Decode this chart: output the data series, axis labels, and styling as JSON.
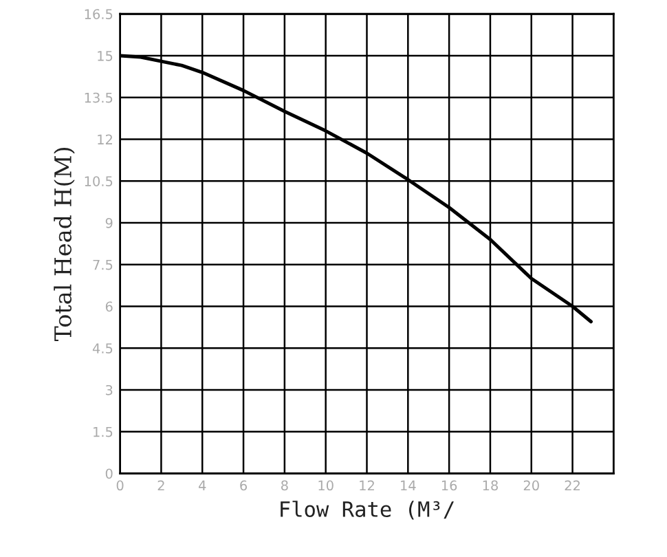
{
  "chart_data": {
    "type": "line",
    "xlabel": "Flow Rate (M³/",
    "ylabel": "Total Head H(M)",
    "x": [
      0,
      1,
      2,
      3,
      4,
      6,
      8,
      10,
      12,
      14,
      16,
      18,
      20,
      22,
      22.9
    ],
    "series": [
      {
        "color": "#000000",
        "values": [
          15.0,
          14.95,
          14.8,
          14.65,
          14.4,
          13.75,
          13.0,
          12.3,
          11.5,
          10.55,
          9.55,
          8.4,
          7.0,
          6.0,
          5.45
        ]
      }
    ],
    "xlim": [
      0,
      24
    ],
    "xticks": [
      0,
      2,
      4,
      6,
      8,
      10,
      12,
      14,
      16,
      18,
      20,
      22,
      {
        "value": 24,
        "label": null
      }
    ],
    "ylim": [
      0,
      16.5
    ],
    "yticks": [
      0,
      1.5,
      3,
      4.5,
      6,
      7.5,
      9,
      10.5,
      12,
      13.5,
      15,
      16.5
    ],
    "grid": true,
    "marker": "none",
    "line_style": "solid",
    "legend": false
  }
}
